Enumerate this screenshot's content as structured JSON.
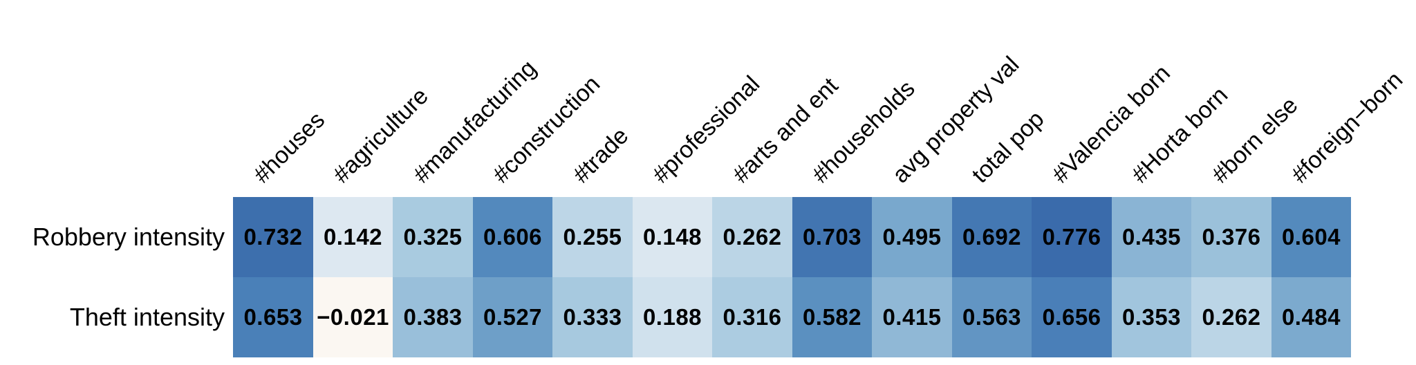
{
  "chart_data": {
    "type": "heatmap",
    "title": "",
    "columns": [
      "#houses",
      "#agriculture",
      "#manufacturing",
      "#construction",
      "#trade",
      "#professional",
      "#arts and ent",
      "#households",
      "avg property val",
      "total pop",
      "#Valencia born",
      "#Horta born",
      "#born else",
      "#foreign−born"
    ],
    "rows": [
      "Robbery intensity",
      "Theft intensity"
    ],
    "series": [
      {
        "name": "Robbery intensity",
        "values": [
          0.732,
          0.142,
          0.325,
          0.606,
          0.255,
          0.148,
          0.262,
          0.703,
          0.495,
          0.692,
          0.776,
          0.435,
          0.376,
          0.604
        ]
      },
      {
        "name": "Theft intensity",
        "values": [
          0.653,
          -0.021,
          0.383,
          0.527,
          0.333,
          0.188,
          0.316,
          0.582,
          0.415,
          0.563,
          0.656,
          0.353,
          0.262,
          0.484
        ]
      }
    ],
    "cell_labels": [
      [
        "0.732",
        "0.142",
        "0.325",
        "0.606",
        "0.255",
        "0.148",
        "0.262",
        "0.703",
        "0.495",
        "0.692",
        "0.776",
        "0.435",
        "0.376",
        "0.604"
      ],
      [
        "0.653",
        "−0.021",
        "0.383",
        "0.527",
        "0.333",
        "0.188",
        "0.316",
        "0.582",
        "0.415",
        "0.563",
        "0.656",
        "0.353",
        "0.262",
        "0.484"
      ]
    ],
    "colormap": {
      "name": "diverging-blues",
      "stops": [
        [
          -0.021,
          "#fbf7f2"
        ],
        [
          0.142,
          "#dde8f1"
        ],
        [
          0.325,
          "#a9cbe0"
        ],
        [
          0.495,
          "#79a8cd"
        ],
        [
          0.606,
          "#5389bd"
        ],
        [
          0.653,
          "#4a80b8"
        ],
        [
          0.732,
          "#3d6fad"
        ],
        [
          0.776,
          "#3a6bab"
        ]
      ]
    },
    "value_text_color": "#000000",
    "background": "#ffffff",
    "legend": "none",
    "grid_lines": "off"
  }
}
